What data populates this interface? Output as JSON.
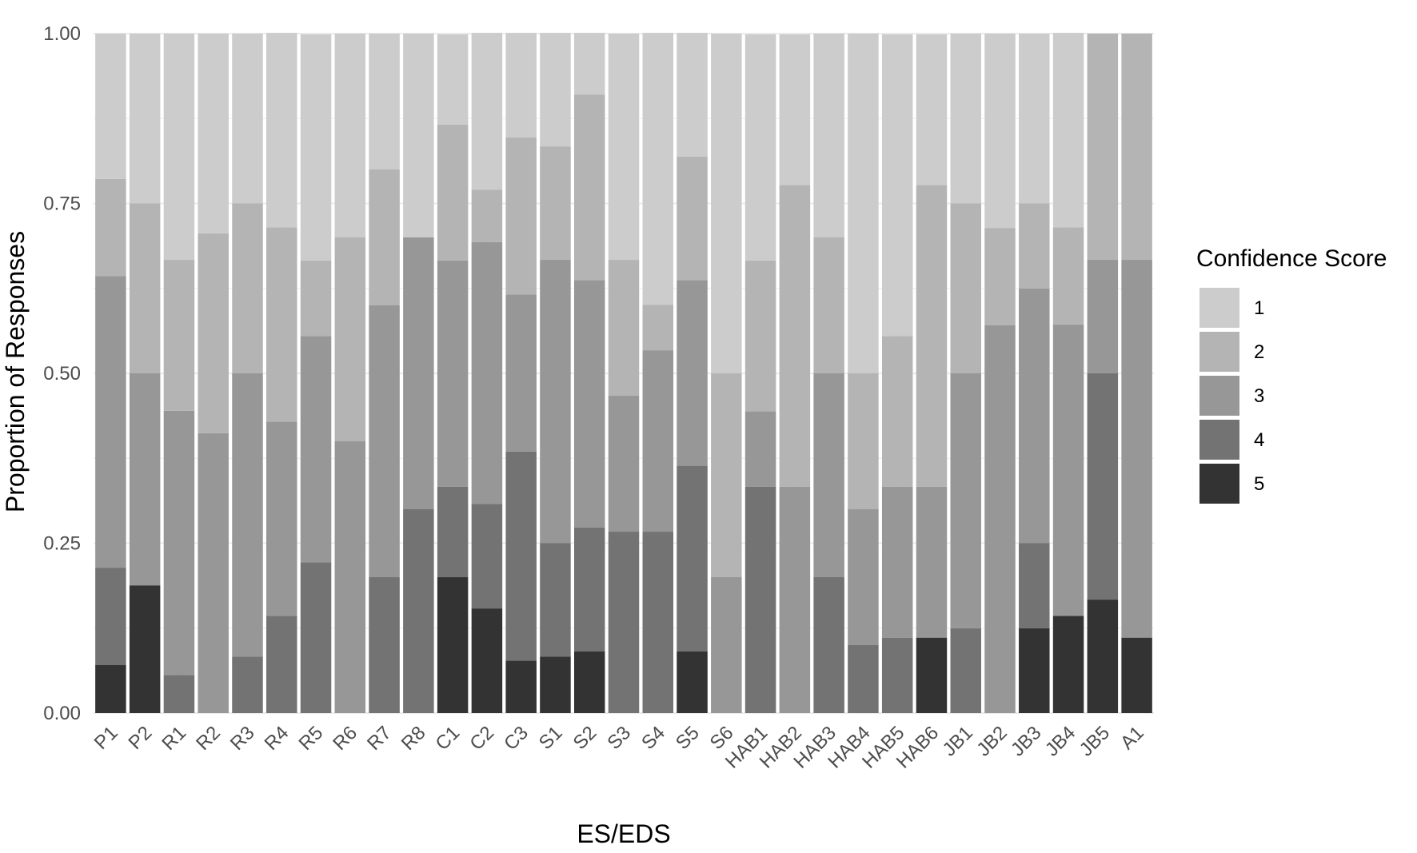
{
  "chart_data": {
    "type": "bar",
    "stacked": true,
    "xlabel": "ES/EDS",
    "ylabel": "Proportion of Responses",
    "ylim": [
      0,
      1
    ],
    "yticks": [
      "0.00",
      "0.25",
      "0.50",
      "0.75",
      "1.00"
    ],
    "grid": true,
    "legend": {
      "title": "Confidence Score",
      "position": "right"
    },
    "categories": [
      "P1",
      "P2",
      "R1",
      "R2",
      "R3",
      "R4",
      "R5",
      "R6",
      "R7",
      "R8",
      "C1",
      "C2",
      "C3",
      "S1",
      "S2",
      "S3",
      "S4",
      "S5",
      "S6",
      "HAB1",
      "HAB2",
      "HAB3",
      "HAB4",
      "HAB5",
      "HAB6",
      "JB1",
      "JB2",
      "JB3",
      "JB4",
      "JB5",
      "A1"
    ],
    "series": [
      {
        "name": "5",
        "color": "#333333",
        "values": [
          0.071,
          0.188,
          0,
          0,
          0,
          0,
          0,
          0,
          0,
          0,
          0.2,
          0.154,
          0.077,
          0.083,
          0.091,
          0,
          0,
          0.091,
          0,
          0,
          0,
          0,
          0,
          0,
          0.111,
          0,
          0,
          0.125,
          0.143,
          0.167,
          0.111
        ]
      },
      {
        "name": "4",
        "color": "#737373",
        "values": [
          0.143,
          0,
          0.056,
          0,
          0.083,
          0.143,
          0.222,
          0,
          0.2,
          0.3,
          0.133,
          0.154,
          0.308,
          0.167,
          0.182,
          0.267,
          0.267,
          0.273,
          0,
          0.333,
          0,
          0.2,
          0.1,
          0.111,
          0,
          0.125,
          0,
          0.125,
          0,
          0.333,
          0
        ]
      },
      {
        "name": "3",
        "color": "#979797",
        "values": [
          0.429,
          0.312,
          0.389,
          0.412,
          0.417,
          0.286,
          0.333,
          0.4,
          0.4,
          0.4,
          0.333,
          0.385,
          0.231,
          0.417,
          0.364,
          0.2,
          0.267,
          0.273,
          0.2,
          0.111,
          0.333,
          0.3,
          0.2,
          0.222,
          0.222,
          0.375,
          0.571,
          0.375,
          0.429,
          0.167,
          0.556
        ]
      },
      {
        "name": "2",
        "color": "#b4b4b4",
        "values": [
          0.143,
          0.25,
          0.222,
          0.294,
          0.25,
          0.286,
          0.111,
          0.3,
          0.2,
          0,
          0.2,
          0.077,
          0.231,
          0.167,
          0.273,
          0.2,
          0.067,
          0.182,
          0.3,
          0.222,
          0.444,
          0.2,
          0.2,
          0.222,
          0.444,
          0.25,
          0.143,
          0.125,
          0.143,
          0.333,
          0.333
        ]
      },
      {
        "name": "1",
        "color": "#cccccc",
        "values": [
          0.214,
          0.25,
          0.333,
          0.294,
          0.25,
          0.286,
          0.333,
          0.3,
          0.2,
          0.3,
          0.133,
          0.231,
          0.154,
          0.167,
          0.091,
          0.333,
          0.4,
          0.182,
          0.5,
          0.333,
          0.222,
          0.3,
          0.5,
          0.444,
          0.222,
          0.25,
          0.286,
          0.25,
          0.286,
          0,
          0
        ]
      }
    ]
  }
}
